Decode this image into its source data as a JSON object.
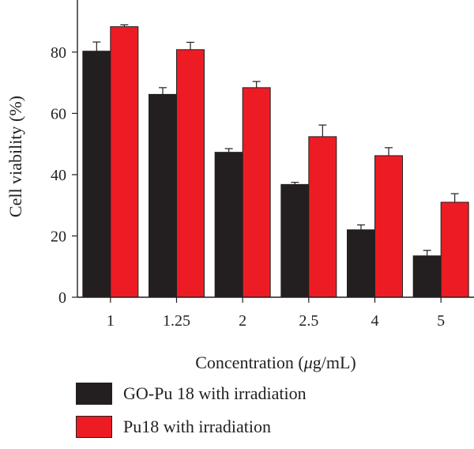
{
  "chart_data": {
    "type": "bar",
    "xlabel_prefix": "Concentration (",
    "xlabel_mu": "μ",
    "xlabel_suffix": "g/mL)",
    "ylabel": "Cell viability (%)",
    "categories": [
      "1",
      "1.25",
      "2",
      "2.5",
      "4",
      "5"
    ],
    "ylim": [
      0,
      97
    ],
    "yticks": [
      0,
      20,
      40,
      60,
      80
    ],
    "grid": false,
    "legend_position": "bottom-left",
    "series": [
      {
        "name": "GO-Pu 18 with irradiation",
        "color": "#231f20",
        "values": [
          80.3,
          66.2,
          47.3,
          36.8,
          22.0,
          13.5
        ],
        "errors": [
          3.0,
          2.2,
          1.2,
          0.7,
          1.6,
          1.8
        ]
      },
      {
        "name": "Pu18 with irradiation",
        "color": "#ed1c24",
        "values": [
          88.3,
          80.8,
          68.4,
          52.4,
          46.2,
          31.0
        ],
        "errors": [
          0.6,
          2.4,
          2.0,
          3.8,
          2.6,
          2.8
        ]
      }
    ]
  }
}
